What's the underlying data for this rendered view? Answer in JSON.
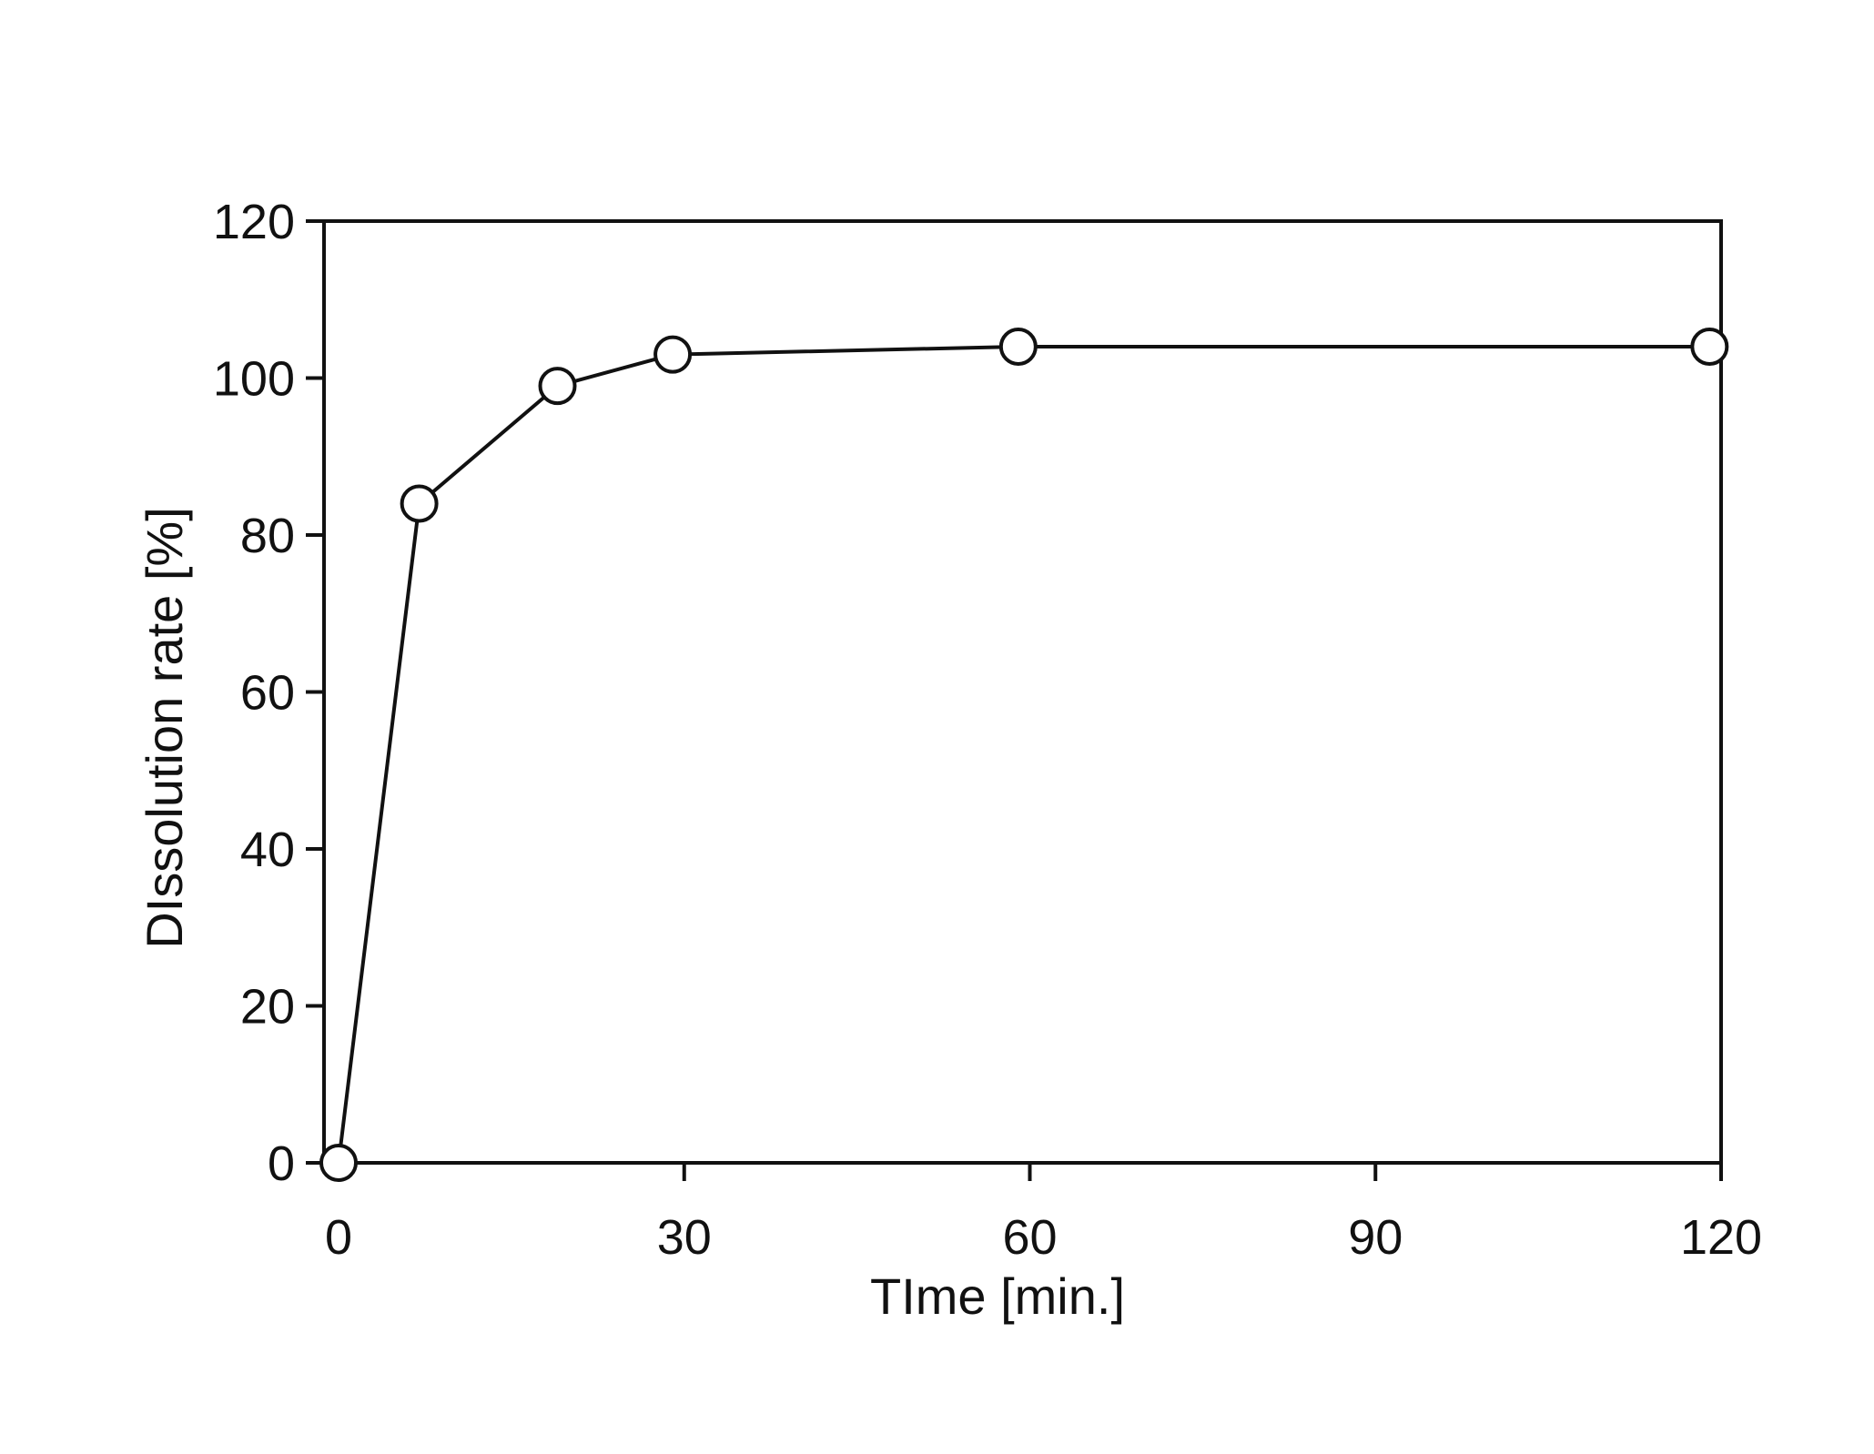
{
  "chart_data": {
    "type": "line",
    "title": "",
    "xlabel": "TIme [min.]",
    "ylabel": "DIssolution rate [%]",
    "xlim": [
      0,
      120
    ],
    "ylim": [
      0,
      120
    ],
    "x_ticks": [
      0,
      30,
      60,
      90,
      120
    ],
    "y_ticks": [
      0,
      20,
      40,
      60,
      80,
      100,
      120
    ],
    "x_tick_labels": [
      "0",
      "30",
      "60",
      "90",
      "120"
    ],
    "y_tick_labels": [
      "0",
      "20",
      "40",
      "60",
      "80",
      "100",
      "120"
    ],
    "grid": false,
    "legend": "none",
    "marker": "open-circle",
    "colors": {
      "line": "#111111",
      "marker_fill": "#ffffff",
      "marker_stroke": "#111111"
    },
    "series": [
      {
        "x": [
          0,
          7,
          19,
          29,
          59,
          119
        ],
        "y": [
          0,
          84,
          99,
          103,
          104,
          104
        ]
      }
    ]
  }
}
